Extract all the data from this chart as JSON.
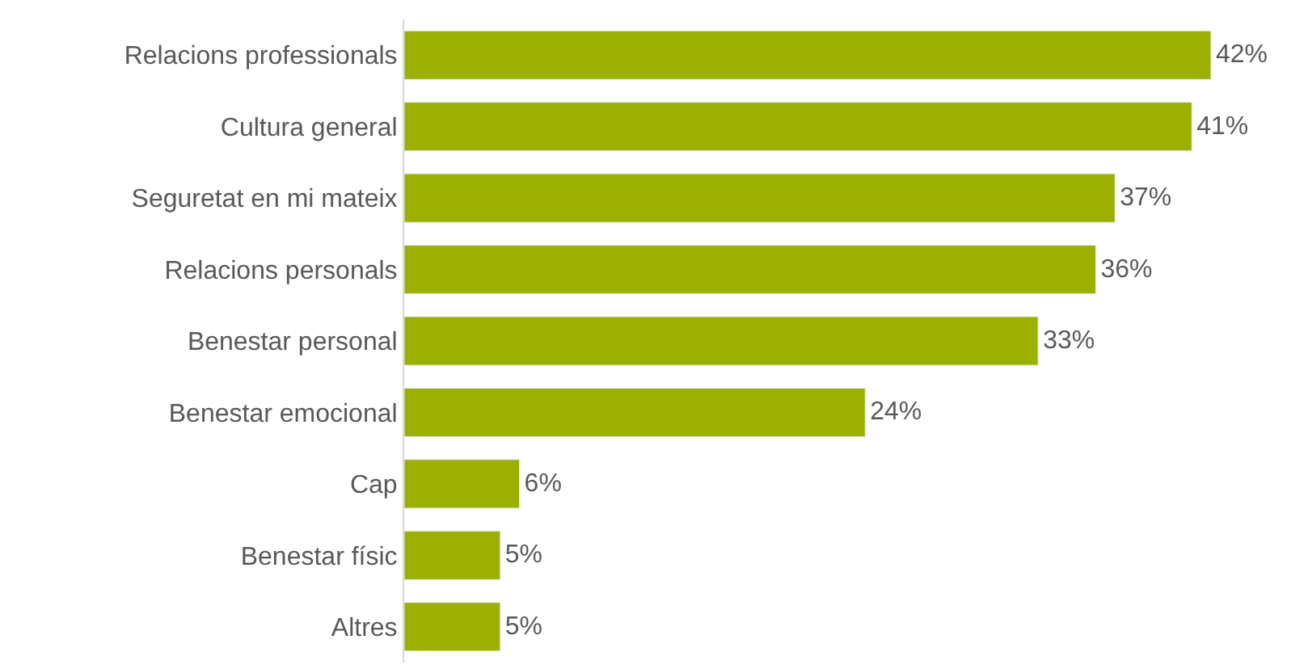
{
  "chart_data": {
    "type": "bar",
    "orientation": "horizontal",
    "categories": [
      "Relacions professionals",
      "Cultura general",
      "Seguretat en mi mateix",
      "Relacions personals",
      "Benestar personal",
      "Benestar emocional",
      "Cap",
      "Benestar físic",
      "Altres"
    ],
    "values": [
      42,
      41,
      37,
      36,
      33,
      24,
      6,
      5,
      5
    ],
    "value_labels": [
      "42%",
      "41%",
      "37%",
      "36%",
      "33%",
      "24%",
      "6%",
      "5%",
      "5%"
    ],
    "color": "#9bb000"
  }
}
